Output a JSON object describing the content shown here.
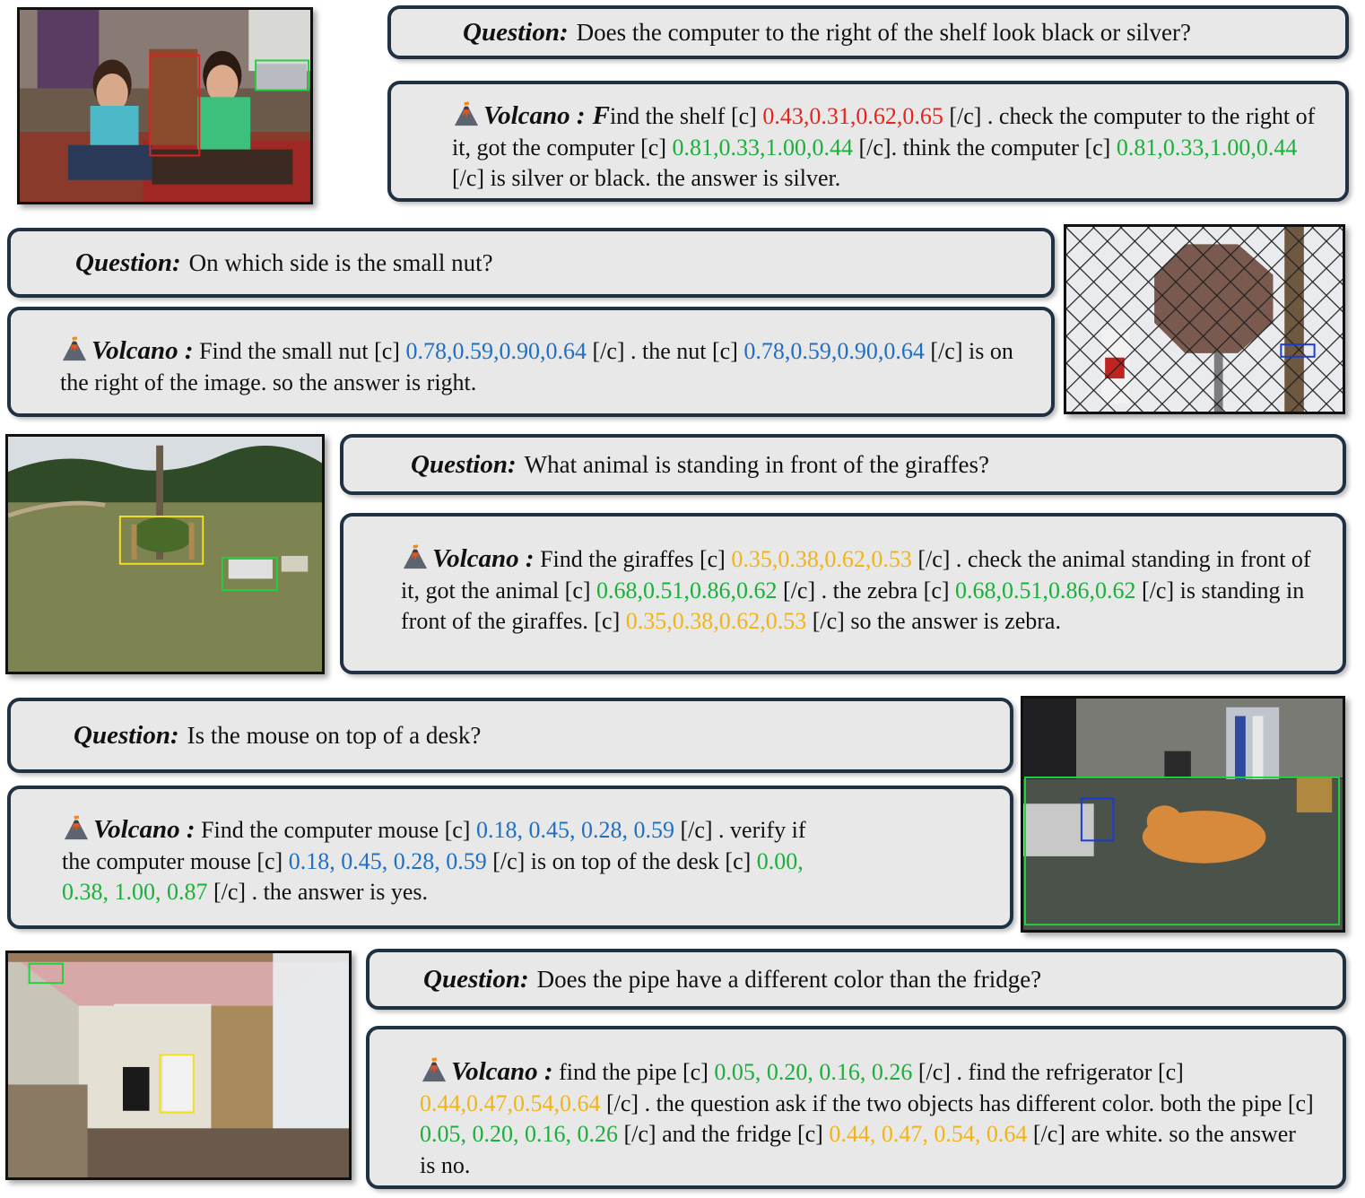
{
  "labels": {
    "question": "Question:",
    "volcano": "Volcano :"
  },
  "colors": {
    "red": "#e8231c",
    "green": "#1caf3c",
    "blue": "#1f6fc2",
    "yellow": "#f0b418",
    "box_border": "#1f3142",
    "box_fill": "#e8e8e8"
  },
  "icons": [
    "volcano-icon"
  ],
  "examples": [
    {
      "question": "Does the computer to the right of the shelf look black or silver?",
      "answer_label": "Volcano :",
      "answer_first_letter": "F",
      "answer": [
        {
          "t": "ind the shelf [c] "
        },
        {
          "t": "0.43,0.31,0.62,0.65",
          "c": "red"
        },
        {
          "t": " [/c] . check the computer to the right of it, got the computer [c] "
        },
        {
          "t": "0.81,0.33,1.00,0.44",
          "c": "green"
        },
        {
          "t": " [/c]. think the computer [c] "
        },
        {
          "t": "0.81,0.33,1.00,0.44",
          "c": "green"
        },
        {
          "t": " [/c] is silver or black. the answer is silver."
        }
      ],
      "image": "two women sitting on a red rug with a shelf and laptop; red box on shelf, green box on computer"
    },
    {
      "question": "On which side is the small nut?",
      "answer": [
        {
          "t": " Find the small nut [c] "
        },
        {
          "t": "0.78,0.59,0.90,0.64",
          "c": "blue"
        },
        {
          "t": " [/c] . the nut [c] "
        },
        {
          "t": "0.78,0.59,0.90,0.64",
          "c": "blue"
        },
        {
          "t": " [/c] is on the right of the image. so the answer is right."
        }
      ],
      "image": "rusty stop sign behind a chain-link fence; blue box on the small nut"
    },
    {
      "question": "What animal is standing in front of the giraffes?",
      "answer": [
        {
          "t": " Find the giraffes [c] "
        },
        {
          "t": "0.35,0.38,0.62,0.53",
          "c": "yellow"
        },
        {
          "t": " [/c] . check the animal standing in front of it, got the animal [c] "
        },
        {
          "t": "0.68,0.51,0.86,0.62",
          "c": "green"
        },
        {
          "t": " [/c] . the zebra [c] "
        },
        {
          "t": "0.68,0.51,0.86,0.62",
          "c": "green"
        },
        {
          "t": " [/c] is standing in front of the giraffes. [c] "
        },
        {
          "t": "0.35,0.38,0.62,0.53",
          "c": "yellow"
        },
        {
          "t": " [/c] so the answer is zebra."
        }
      ],
      "image": "grassy field with giraffes under a tree (yellow box) and zebras (green box)"
    },
    {
      "question": "Is the mouse on top of a desk?",
      "answer": [
        {
          "t": " Find the computer mouse [c] "
        },
        {
          "t": "0.18, 0.45, 0.28, 0.59",
          "c": "blue"
        },
        {
          "t": " [/c] . verify if the computer mouse [c] "
        },
        {
          "t": "0.18, 0.45, 0.28, 0.59",
          "c": "blue"
        },
        {
          "t": " [/c] is on top of the desk [c] "
        },
        {
          "t": "0.00, 0.38, 1.00, 0.87",
          "c": "green"
        },
        {
          "t": " [/c] . the answer is yes."
        }
      ],
      "image": "orange cat lying on a glass desk next to a computer mouse (blue box); desk in green box"
    },
    {
      "question": "Does the pipe have a different color than the fridge?",
      "answer": [
        {
          "t": " find the pipe [c] "
        },
        {
          "t": "0.05, 0.20, 0.16, 0.26",
          "c": "green"
        },
        {
          "t": " [/c] . find the refrigerator [c] "
        },
        {
          "t": "0.44,0.47,0.54,0.64",
          "c": "yellow"
        },
        {
          "t": " [/c] . the question ask if the two objects has different color. both the pipe [c] "
        },
        {
          "t": "0.05, 0.20, 0.16, 0.26",
          "c": "green"
        },
        {
          "t": " [/c] and the fridge [c] "
        },
        {
          "t": "0.44, 0.47, 0.54, 0.64",
          "c": "yellow"
        },
        {
          "t": " [/c] are white. so the answer is no."
        }
      ],
      "image": "kitchen under renovation with exposed insulation; pipe (green box) and fridge (yellow box)"
    }
  ]
}
